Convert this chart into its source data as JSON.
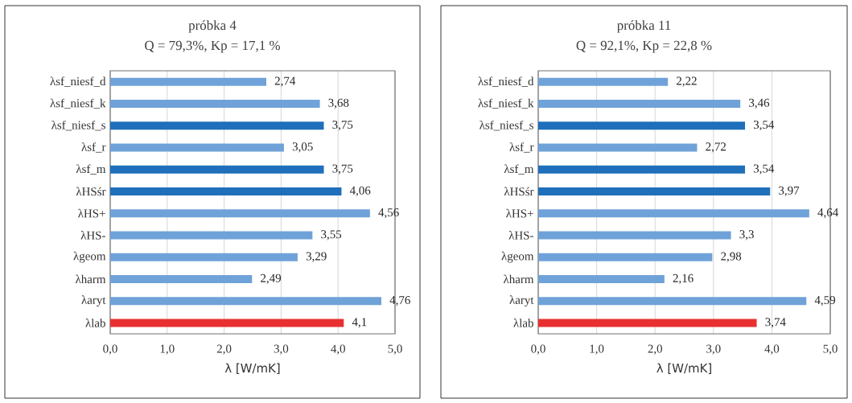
{
  "chart_data": [
    {
      "type": "bar",
      "orientation": "horizontal",
      "title": "próbka 4",
      "subtitle": "Q = 79,3%, Kp = 17,1 %",
      "xlabel": "λ [W/mK]",
      "categories": [
        "λsf_niesf_d",
        "λsf_niesf_k",
        "λsf_niesf_s",
        "λsf_r",
        "λsf_m",
        "λHSśr",
        "λHS+",
        "λHS-",
        "λgeom",
        "λharm",
        "λaryt",
        "λlab"
      ],
      "values": [
        2.74,
        3.68,
        3.75,
        3.05,
        3.75,
        4.06,
        4.56,
        3.55,
        3.29,
        2.49,
        4.76,
        4.1
      ],
      "value_labels": [
        "2,74",
        "3,68",
        "3,75",
        "3,05",
        "3,75",
        "4,06",
        "4,56",
        "3,55",
        "3,29",
        "2,49",
        "4,76",
        "4,1"
      ],
      "colors": [
        "#6fa2d8",
        "#6fa2d8",
        "#1f6fba",
        "#6fa2d8",
        "#1f6fba",
        "#1f6fba",
        "#6fa2d8",
        "#6fa2d8",
        "#6fa2d8",
        "#6fa2d8",
        "#6fa2d8",
        "#e83030"
      ],
      "xlim": [
        0,
        5
      ],
      "xticks": [
        {
          "value": 0,
          "label": "0,0"
        },
        {
          "value": 1,
          "label": "1,0"
        },
        {
          "value": 2,
          "label": "2,0"
        },
        {
          "value": 3,
          "label": "3,0"
        },
        {
          "value": 4,
          "label": "4,0"
        },
        {
          "value": 5,
          "label": "5,0"
        }
      ],
      "grid": "x"
    },
    {
      "type": "bar",
      "orientation": "horizontal",
      "title": "próbka 11",
      "subtitle": "Q = 92,1%, Kp = 22,8 %",
      "xlabel": "λ [W/mK]",
      "categories": [
        "λsf_niesf_d",
        "λsf_niesf_k",
        "λsf_niesf_s",
        "λsf_r",
        "λsf_m",
        "λHSśr",
        "λHS+",
        "λHS-",
        "λgeom",
        "λharm",
        "λaryt",
        "λlab"
      ],
      "values": [
        2.22,
        3.46,
        3.54,
        2.72,
        3.54,
        3.97,
        4.64,
        3.3,
        2.98,
        2.16,
        4.59,
        3.74
      ],
      "value_labels": [
        "2,22",
        "3,46",
        "3,54",
        "2,72",
        "3,54",
        "3,97",
        "4,64",
        "3,3",
        "2,98",
        "2,16",
        "4,59",
        "3,74"
      ],
      "colors": [
        "#6fa2d8",
        "#6fa2d8",
        "#1f6fba",
        "#6fa2d8",
        "#1f6fba",
        "#1f6fba",
        "#6fa2d8",
        "#6fa2d8",
        "#6fa2d8",
        "#6fa2d8",
        "#6fa2d8",
        "#e83030"
      ],
      "xlim": [
        0,
        5
      ],
      "xticks": [
        {
          "value": 0,
          "label": "0,0"
        },
        {
          "value": 1,
          "label": "1,0"
        },
        {
          "value": 2,
          "label": "2,0"
        },
        {
          "value": 3,
          "label": "3,0"
        },
        {
          "value": 4,
          "label": "4,0"
        },
        {
          "value": 5,
          "label": "5,0"
        }
      ],
      "grid": "x"
    }
  ]
}
